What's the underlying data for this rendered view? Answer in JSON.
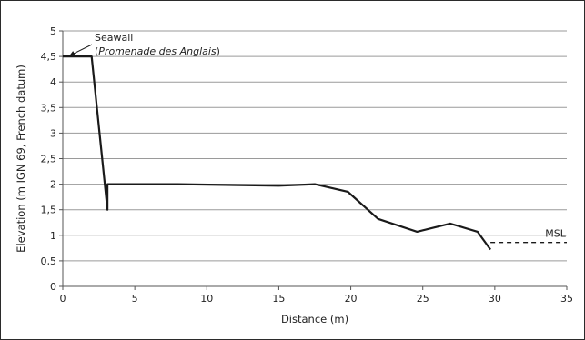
{
  "chart_data": {
    "type": "line",
    "xlabel": "Distance (m)",
    "ylabel": "Elevation (m IGN 69, French datum)",
    "xlim": [
      0,
      35
    ],
    "ylim": [
      0,
      5
    ],
    "x_ticks": [
      "0",
      "5",
      "10",
      "15",
      "20",
      "25",
      "30",
      "35"
    ],
    "y_ticks": [
      "0",
      "0,5",
      "1",
      "1,5",
      "2",
      "2,5",
      "3",
      "3,5",
      "4",
      "4,5",
      "5"
    ],
    "grid": "horizontal",
    "series": [
      {
        "style": "solid",
        "color": "#1a1a1a",
        "points": [
          [
            0,
            4.5
          ],
          [
            2,
            4.5
          ],
          [
            3.1,
            1.5
          ],
          [
            3.1,
            2.0
          ],
          [
            8,
            2.0
          ],
          [
            15,
            1.97
          ],
          [
            17.5,
            2.0
          ],
          [
            19.8,
            1.85
          ],
          [
            21.9,
            1.32
          ],
          [
            24.6,
            1.07
          ],
          [
            26.9,
            1.23
          ],
          [
            28.8,
            1.07
          ],
          [
            29.7,
            0.72
          ]
        ]
      },
      {
        "name": "MSL",
        "style": "dashed",
        "color": "#1a1a1a",
        "points": [
          [
            29.7,
            0.86
          ],
          [
            35,
            0.86
          ]
        ]
      }
    ],
    "annotations": [
      {
        "line1": "Seawall",
        "line2_open": "(",
        "line2_italic": "Promenade des Anglais",
        "line2_close": ")",
        "arrow_to": [
          0.3,
          4.5
        ]
      },
      {
        "text": "MSL",
        "at": [
          33.5,
          0.86
        ]
      }
    ]
  }
}
